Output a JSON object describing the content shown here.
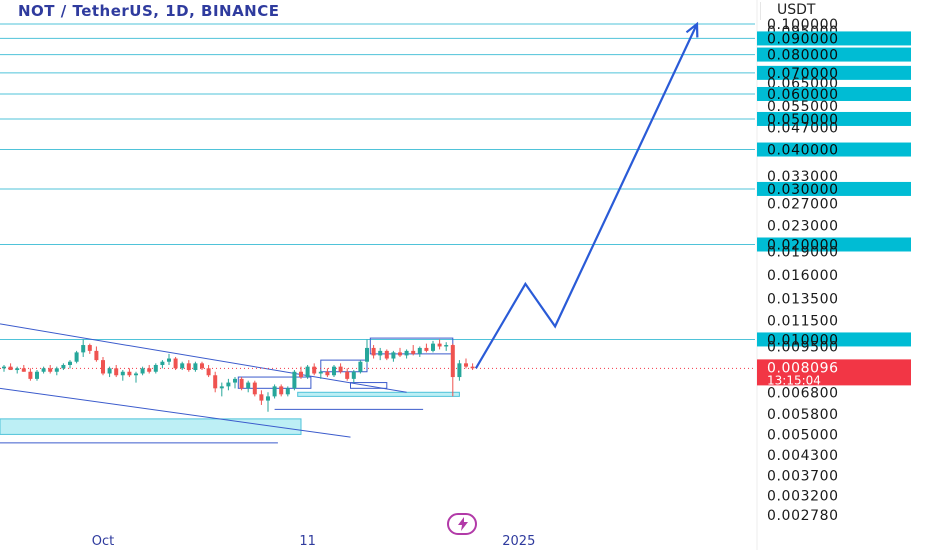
{
  "header": {
    "symbol_title": "NOT / TetherUS, 1D, BINANCE",
    "currency": "USDT",
    "countdown": "13:15:04"
  },
  "colors": {
    "title": "#2f3b9e",
    "level_line": "#4fc3d9",
    "level_badge": "#00bcd4",
    "price_badge": "#f23645",
    "up_candle": "#26a69a",
    "down_candle": "#ef5350",
    "projection": "#2a5bd7",
    "trendline": "#3b5bcc",
    "demand_zone": "#bdeff5"
  },
  "chart_data": {
    "type": "candlestick",
    "y_scale": "log",
    "ylim": [
      0.0026,
      0.1
    ],
    "x_tick_labels": [
      {
        "label": "Oct",
        "index": 15
      },
      {
        "label": "11",
        "index": 46
      },
      {
        "label": "2025",
        "index": 78
      }
    ],
    "y_axis_labels": [
      {
        "value": 0.1,
        "label": "0.100000"
      },
      {
        "value": 0.095,
        "label": "0.095000"
      },
      {
        "value": 0.09,
        "label": "0.090000",
        "highlighted": true
      },
      {
        "value": 0.08,
        "label": "0.080000",
        "highlighted": true
      },
      {
        "value": 0.07,
        "label": "0.070000",
        "highlighted": true
      },
      {
        "value": 0.065,
        "label": "0.065000"
      },
      {
        "value": 0.06,
        "label": "0.060000",
        "highlighted": true
      },
      {
        "value": 0.055,
        "label": "0.055000"
      },
      {
        "value": 0.05,
        "label": "0.050000",
        "highlighted": true
      },
      {
        "value": 0.047,
        "label": "0.047000"
      },
      {
        "value": 0.04,
        "label": "0.040000",
        "highlighted": true
      },
      {
        "value": 0.033,
        "label": "0.033000"
      },
      {
        "value": 0.03,
        "label": "0.030000",
        "highlighted": true
      },
      {
        "value": 0.027,
        "label": "0.027000"
      },
      {
        "value": 0.023,
        "label": "0.023000"
      },
      {
        "value": 0.02,
        "label": "0.020000",
        "highlighted": true
      },
      {
        "value": 0.019,
        "label": "0.019000"
      },
      {
        "value": 0.016,
        "label": "0.016000"
      },
      {
        "value": 0.0135,
        "label": "0.013500"
      },
      {
        "value": 0.0115,
        "label": "0.011500"
      },
      {
        "value": 0.01,
        "label": "0.010000",
        "highlighted": true
      },
      {
        "value": 0.0095,
        "label": "0.009500"
      },
      {
        "value": 0.0068,
        "label": "0.006800"
      },
      {
        "value": 0.0058,
        "label": "0.005800"
      },
      {
        "value": 0.005,
        "label": "0.005000"
      },
      {
        "value": 0.0043,
        "label": "0.004300"
      },
      {
        "value": 0.0037,
        "label": "0.003700"
      },
      {
        "value": 0.0032,
        "label": "0.003200"
      },
      {
        "value": 0.00278,
        "label": "0.002780"
      }
    ],
    "current_price": {
      "value": 0.008096,
      "label": "0.008096"
    },
    "horizontal_levels": [
      0.1,
      0.09,
      0.08,
      0.07,
      0.06,
      0.05,
      0.04,
      0.03,
      0.02,
      0.01
    ],
    "candles": [
      {
        "o": 0.0081,
        "h": 0.0083,
        "l": 0.0079,
        "c": 0.0082
      },
      {
        "o": 0.0082,
        "h": 0.0084,
        "l": 0.008,
        "c": 0.008
      },
      {
        "o": 0.008,
        "h": 0.0082,
        "l": 0.0078,
        "c": 0.0081
      },
      {
        "o": 0.0081,
        "h": 0.0083,
        "l": 0.0079,
        "c": 0.0079
      },
      {
        "o": 0.0079,
        "h": 0.0081,
        "l": 0.0074,
        "c": 0.0075
      },
      {
        "o": 0.0075,
        "h": 0.008,
        "l": 0.0074,
        "c": 0.0079
      },
      {
        "o": 0.0079,
        "h": 0.0082,
        "l": 0.0078,
        "c": 0.0081
      },
      {
        "o": 0.0081,
        "h": 0.0083,
        "l": 0.0078,
        "c": 0.0079
      },
      {
        "o": 0.0079,
        "h": 0.0082,
        "l": 0.0077,
        "c": 0.0081
      },
      {
        "o": 0.0081,
        "h": 0.0084,
        "l": 0.008,
        "c": 0.0083
      },
      {
        "o": 0.0083,
        "h": 0.0086,
        "l": 0.0081,
        "c": 0.0085
      },
      {
        "o": 0.0085,
        "h": 0.0092,
        "l": 0.0084,
        "c": 0.0091
      },
      {
        "o": 0.0091,
        "h": 0.01,
        "l": 0.0088,
        "c": 0.0096
      },
      {
        "o": 0.0096,
        "h": 0.0097,
        "l": 0.009,
        "c": 0.0092
      },
      {
        "o": 0.0092,
        "h": 0.0095,
        "l": 0.0085,
        "c": 0.0086
      },
      {
        "o": 0.0086,
        "h": 0.0088,
        "l": 0.0077,
        "c": 0.0078
      },
      {
        "o": 0.0078,
        "h": 0.0082,
        "l": 0.0076,
        "c": 0.0081
      },
      {
        "o": 0.0081,
        "h": 0.0083,
        "l": 0.0076,
        "c": 0.0077
      },
      {
        "o": 0.0077,
        "h": 0.008,
        "l": 0.0074,
        "c": 0.0079
      },
      {
        "o": 0.0079,
        "h": 0.0081,
        "l": 0.0076,
        "c": 0.0077
      },
      {
        "o": 0.0077,
        "h": 0.0079,
        "l": 0.0073,
        "c": 0.0078
      },
      {
        "o": 0.0078,
        "h": 0.0082,
        "l": 0.0077,
        "c": 0.0081
      },
      {
        "o": 0.0081,
        "h": 0.0083,
        "l": 0.0078,
        "c": 0.0079
      },
      {
        "o": 0.0079,
        "h": 0.0084,
        "l": 0.0078,
        "c": 0.0083
      },
      {
        "o": 0.0083,
        "h": 0.0086,
        "l": 0.0081,
        "c": 0.0085
      },
      {
        "o": 0.0085,
        "h": 0.009,
        "l": 0.0083,
        "c": 0.0087
      },
      {
        "o": 0.0087,
        "h": 0.0088,
        "l": 0.008,
        "c": 0.0081
      },
      {
        "o": 0.0081,
        "h": 0.0085,
        "l": 0.008,
        "c": 0.0084
      },
      {
        "o": 0.0084,
        "h": 0.0086,
        "l": 0.0079,
        "c": 0.008
      },
      {
        "o": 0.008,
        "h": 0.0085,
        "l": 0.0079,
        "c": 0.0084
      },
      {
        "o": 0.0084,
        "h": 0.0085,
        "l": 0.008,
        "c": 0.0081
      },
      {
        "o": 0.0081,
        "h": 0.0083,
        "l": 0.0076,
        "c": 0.0077
      },
      {
        "o": 0.0077,
        "h": 0.0079,
        "l": 0.0068,
        "c": 0.007
      },
      {
        "o": 0.007,
        "h": 0.0073,
        "l": 0.0066,
        "c": 0.0071
      },
      {
        "o": 0.0071,
        "h": 0.0075,
        "l": 0.0069,
        "c": 0.0073
      },
      {
        "o": 0.0073,
        "h": 0.0076,
        "l": 0.007,
        "c": 0.0075
      },
      {
        "o": 0.0075,
        "h": 0.0076,
        "l": 0.0069,
        "c": 0.007
      },
      {
        "o": 0.007,
        "h": 0.0074,
        "l": 0.0068,
        "c": 0.0073
      },
      {
        "o": 0.0073,
        "h": 0.0074,
        "l": 0.0066,
        "c": 0.0067
      },
      {
        "o": 0.0067,
        "h": 0.0069,
        "l": 0.0062,
        "c": 0.0064
      },
      {
        "o": 0.0064,
        "h": 0.0068,
        "l": 0.0059,
        "c": 0.0066
      },
      {
        "o": 0.0066,
        "h": 0.0072,
        "l": 0.0065,
        "c": 0.0071
      },
      {
        "o": 0.0071,
        "h": 0.0072,
        "l": 0.0066,
        "c": 0.0067
      },
      {
        "o": 0.0067,
        "h": 0.0071,
        "l": 0.0066,
        "c": 0.007
      },
      {
        "o": 0.007,
        "h": 0.008,
        "l": 0.0069,
        "c": 0.0079
      },
      {
        "o": 0.0079,
        "h": 0.0082,
        "l": 0.0075,
        "c": 0.0076
      },
      {
        "o": 0.0076,
        "h": 0.0083,
        "l": 0.0075,
        "c": 0.0082
      },
      {
        "o": 0.0082,
        "h": 0.0084,
        "l": 0.0077,
        "c": 0.0078
      },
      {
        "o": 0.0078,
        "h": 0.008,
        "l": 0.0075,
        "c": 0.0079
      },
      {
        "o": 0.0079,
        "h": 0.0081,
        "l": 0.0076,
        "c": 0.0077
      },
      {
        "o": 0.0077,
        "h": 0.0083,
        "l": 0.0076,
        "c": 0.0082
      },
      {
        "o": 0.0082,
        "h": 0.0084,
        "l": 0.0078,
        "c": 0.0079
      },
      {
        "o": 0.0079,
        "h": 0.0081,
        "l": 0.0074,
        "c": 0.0075
      },
      {
        "o": 0.0075,
        "h": 0.008,
        "l": 0.0073,
        "c": 0.0079
      },
      {
        "o": 0.0079,
        "h": 0.0086,
        "l": 0.0078,
        "c": 0.0085
      },
      {
        "o": 0.0085,
        "h": 0.01,
        "l": 0.0084,
        "c": 0.0094
      },
      {
        "o": 0.0094,
        "h": 0.0096,
        "l": 0.0087,
        "c": 0.0089
      },
      {
        "o": 0.0089,
        "h": 0.0094,
        "l": 0.0086,
        "c": 0.0092
      },
      {
        "o": 0.0092,
        "h": 0.0093,
        "l": 0.0086,
        "c": 0.0087
      },
      {
        "o": 0.0087,
        "h": 0.0092,
        "l": 0.0085,
        "c": 0.0091
      },
      {
        "o": 0.0091,
        "h": 0.0094,
        "l": 0.0088,
        "c": 0.0089
      },
      {
        "o": 0.0089,
        "h": 0.0093,
        "l": 0.0087,
        "c": 0.0092
      },
      {
        "o": 0.0092,
        "h": 0.0096,
        "l": 0.0089,
        "c": 0.009
      },
      {
        "o": 0.009,
        "h": 0.0095,
        "l": 0.0088,
        "c": 0.0094
      },
      {
        "o": 0.0094,
        "h": 0.0097,
        "l": 0.0091,
        "c": 0.0092
      },
      {
        "o": 0.0092,
        "h": 0.0099,
        "l": 0.0091,
        "c": 0.0097
      },
      {
        "o": 0.0097,
        "h": 0.01,
        "l": 0.0093,
        "c": 0.0095
      },
      {
        "o": 0.0095,
        "h": 0.0098,
        "l": 0.0092,
        "c": 0.0096
      },
      {
        "o": 0.0096,
        "h": 0.0097,
        "l": 0.0066,
        "c": 0.0076
      },
      {
        "o": 0.0076,
        "h": 0.0086,
        "l": 0.0074,
        "c": 0.0084
      },
      {
        "o": 0.0084,
        "h": 0.0087,
        "l": 0.0081,
        "c": 0.0082
      },
      {
        "o": 0.0082,
        "h": 0.0084,
        "l": 0.008,
        "c": 0.0081
      }
    ],
    "projection_path": [
      {
        "index": 71.5,
        "value": 0.0081
      },
      {
        "index": 79,
        "value": 0.015
      },
      {
        "index": 83.5,
        "value": 0.011
      },
      {
        "index": 105,
        "value": 0.1
      }
    ]
  }
}
